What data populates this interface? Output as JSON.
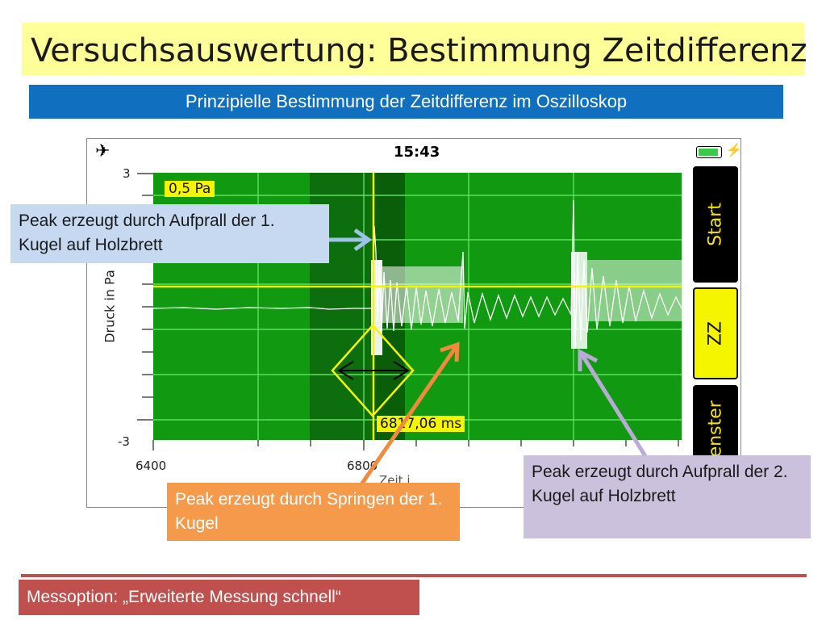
{
  "slide": {
    "title": "Versuchsauswertung: Bestimmung Zeitdifferenz",
    "subtitle": "Prinzipielle Bestimmung der Zeitdifferenz im Oszilloskop",
    "footer": "Messoption: „Erweiterte Messung schnell“"
  },
  "phone": {
    "status_time": "15:43",
    "airplane_icon": "airplane-icon",
    "battery_icon": "battery-icon"
  },
  "scope": {
    "y_label": "Druck in Pa",
    "y_ticks": [
      "3",
      "-3"
    ],
    "x_ticks": [
      "6400",
      "6800"
    ],
    "x_label_partial": "Zeit i",
    "scale_badge": "0,5 Pa",
    "cursor_time": "6817,06 ms",
    "buttons": {
      "start": "Start",
      "zz": "ZZ",
      "fenster": "Fenster"
    }
  },
  "callouts": {
    "peak1": "Peak erzeugt durch Aufprall der 1. Kugel auf Holzbrett",
    "peak_spring": "Peak erzeugt durch Springen der 1. Kugel",
    "peak2": "Peak erzeugt durch Aufprall der 2. Kugel auf Holzbrett"
  },
  "colors": {
    "scope_green": "#119a11",
    "grid_line": "#5fe05f",
    "cursor_yellow": "#f5f500",
    "accent_blue": "#1070bf",
    "accent_red": "#c0504d"
  }
}
